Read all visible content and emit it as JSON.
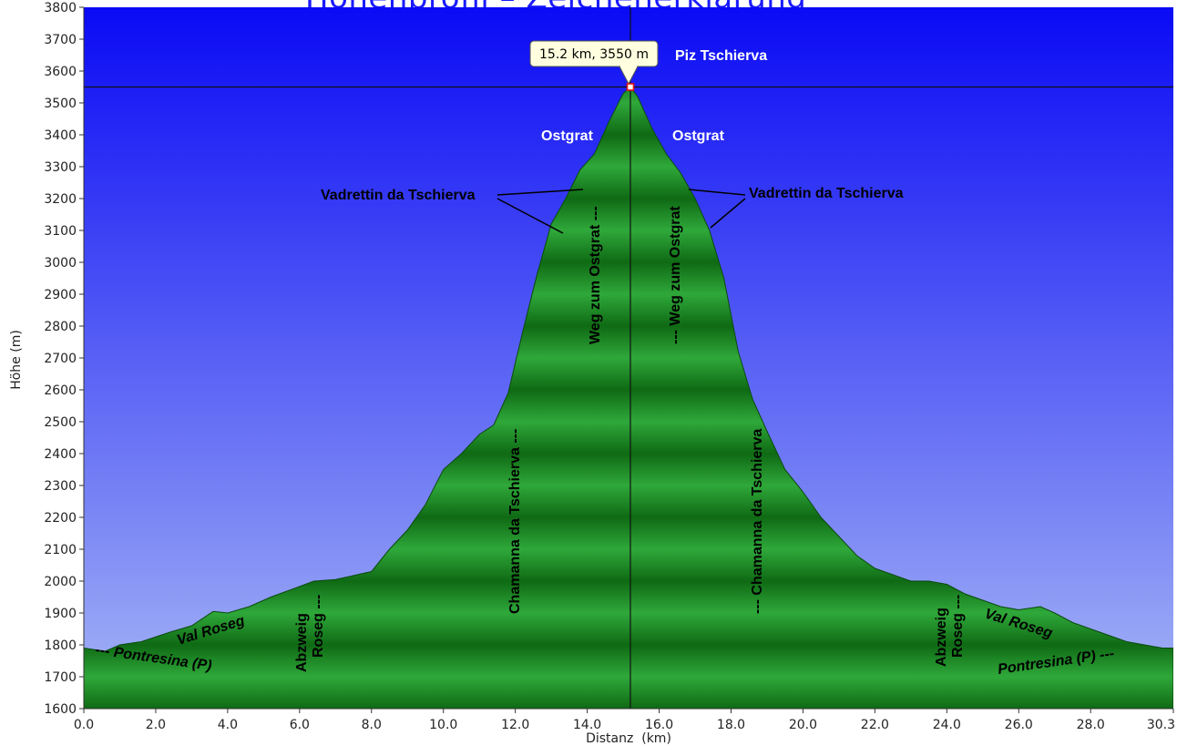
{
  "title": "Höhenprofil – Zeichenerklärung",
  "chart_data": {
    "type": "area",
    "xlabel": "Distanz  (km)",
    "ylabel": "Höhe (m)",
    "xlim": [
      0,
      30.3
    ],
    "ylim": [
      1600,
      3800
    ],
    "xticks": [
      0,
      2,
      4,
      6,
      8,
      10,
      12,
      14,
      16,
      18,
      20,
      22,
      24,
      26,
      28,
      30.3
    ],
    "xtick_labels": [
      "0.0",
      "2.0",
      "4.0",
      "6.0",
      "8.0",
      "10.0",
      "12.0",
      "14.0",
      "16.0",
      "18.0",
      "20.0",
      "22.0",
      "24.0",
      "26.0",
      "28.0",
      "30.3"
    ],
    "yticks": [
      1600,
      1700,
      1800,
      1900,
      2000,
      2100,
      2200,
      2300,
      2400,
      2500,
      2600,
      2700,
      2800,
      2900,
      3000,
      3100,
      3200,
      3300,
      3400,
      3500,
      3600,
      3700,
      3800
    ],
    "grid": false,
    "colors": {
      "fill_dark": "#0f6a14",
      "fill_light": "#2fa83a",
      "sky_top": "#0a0af5",
      "sky_bottom": "#a6b6f5"
    },
    "series": [
      {
        "x": [
          0,
          0.6,
          1.0,
          1.6,
          2.4,
          3.0,
          3.6,
          4.0,
          4.6,
          5.2,
          5.8,
          6.4,
          7.0,
          7.6,
          8.0,
          8.5,
          9.0,
          9.5,
          10.0,
          10.5,
          11.0,
          11.4,
          11.8,
          12.2,
          12.6,
          13.0,
          13.4,
          13.8,
          14.2,
          14.6,
          15.0,
          15.2,
          15.4,
          15.8,
          16.2,
          16.6,
          17.0,
          17.4,
          17.8,
          18.2,
          18.6,
          19.0,
          19.5,
          20.0,
          20.5,
          21.0,
          21.5,
          22.0,
          22.5,
          23.0,
          23.5,
          24.0,
          24.5,
          25.0,
          25.5,
          26.0,
          26.6,
          27.0,
          27.5,
          28.0,
          28.5,
          29.0,
          29.5,
          30.0,
          30.3
        ],
        "y": [
          1790,
          1780,
          1800,
          1810,
          1840,
          1860,
          1905,
          1900,
          1920,
          1950,
          1975,
          2000,
          2005,
          2020,
          2030,
          2100,
          2160,
          2240,
          2350,
          2400,
          2460,
          2490,
          2590,
          2780,
          2960,
          3120,
          3200,
          3290,
          3340,
          3440,
          3530,
          3550,
          3520,
          3420,
          3340,
          3280,
          3200,
          3100,
          2950,
          2720,
          2570,
          2470,
          2350,
          2280,
          2200,
          2140,
          2080,
          2040,
          2020,
          2000,
          2000,
          1990,
          1960,
          1940,
          1920,
          1910,
          1920,
          1900,
          1870,
          1850,
          1830,
          1810,
          1800,
          1790,
          1790
        ]
      }
    ],
    "marker": {
      "x": 15.2,
      "y": 3550,
      "label": "15.2 km, 3550 m"
    },
    "annotations": {
      "piz": "Piz Tschierva",
      "ostgrat_left": "Ostgrat",
      "ostgrat_right": "Ostgrat",
      "vadrettin_left": "Vadrettin da Tschierva",
      "vadrettin_right": "Vadrettin da Tschierva",
      "weg_left": "Weg zum Ostgrat ---",
      "weg_right": "--- Weg zum Ostgrat",
      "chamanna_left": "Chamanna da Tschierva ---",
      "chamanna_right": "--- Chamanna da Tschierva",
      "abzweig_left_1": "Abzweig",
      "abzweig_left_2": "Roseg ---",
      "abzweig_right_1": "Abzweig",
      "abzweig_right_2": "Roseg ---",
      "valroseg_left": "Val Roseg",
      "valroseg_right": "Val Roseg",
      "pontresina_left": "--- Pontresina (P)",
      "pontresina_right": "Pontresina (P) ---"
    }
  }
}
